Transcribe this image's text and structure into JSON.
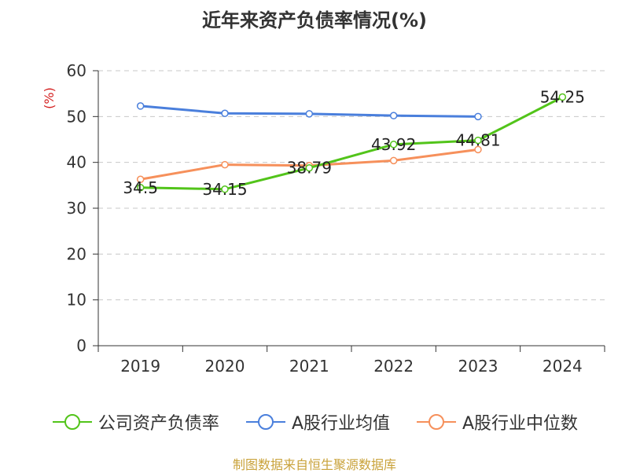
{
  "chart_data": {
    "type": "line",
    "title": "近年来资产负债率情况(%)",
    "ylabel": "(%)",
    "xlabel": "",
    "categories": [
      "2019",
      "2020",
      "2021",
      "2022",
      "2023",
      "2024"
    ],
    "ylim": [
      0,
      60
    ],
    "yticks": [
      0,
      10,
      20,
      30,
      40,
      50,
      60
    ],
    "grid": true,
    "legend_position": "bottom",
    "series": [
      {
        "name": "公司资产负债率",
        "color": "#52c41a",
        "values": [
          34.5,
          34.15,
          38.79,
          43.92,
          44.81,
          54.25
        ],
        "labels": [
          "34.5",
          "34.15",
          "38.79",
          "43.92",
          "44.81",
          "54.25"
        ]
      },
      {
        "name": "A股行业均值",
        "color": "#4a7fdc",
        "values": [
          52.3,
          50.7,
          50.6,
          50.2,
          50.0,
          null
        ]
      },
      {
        "name": "A股行业中位数",
        "color": "#f6905b",
        "values": [
          36.3,
          39.5,
          39.3,
          40.4,
          42.8,
          null
        ]
      }
    ]
  },
  "source_note": "制图数据来自恒生聚源数据库"
}
